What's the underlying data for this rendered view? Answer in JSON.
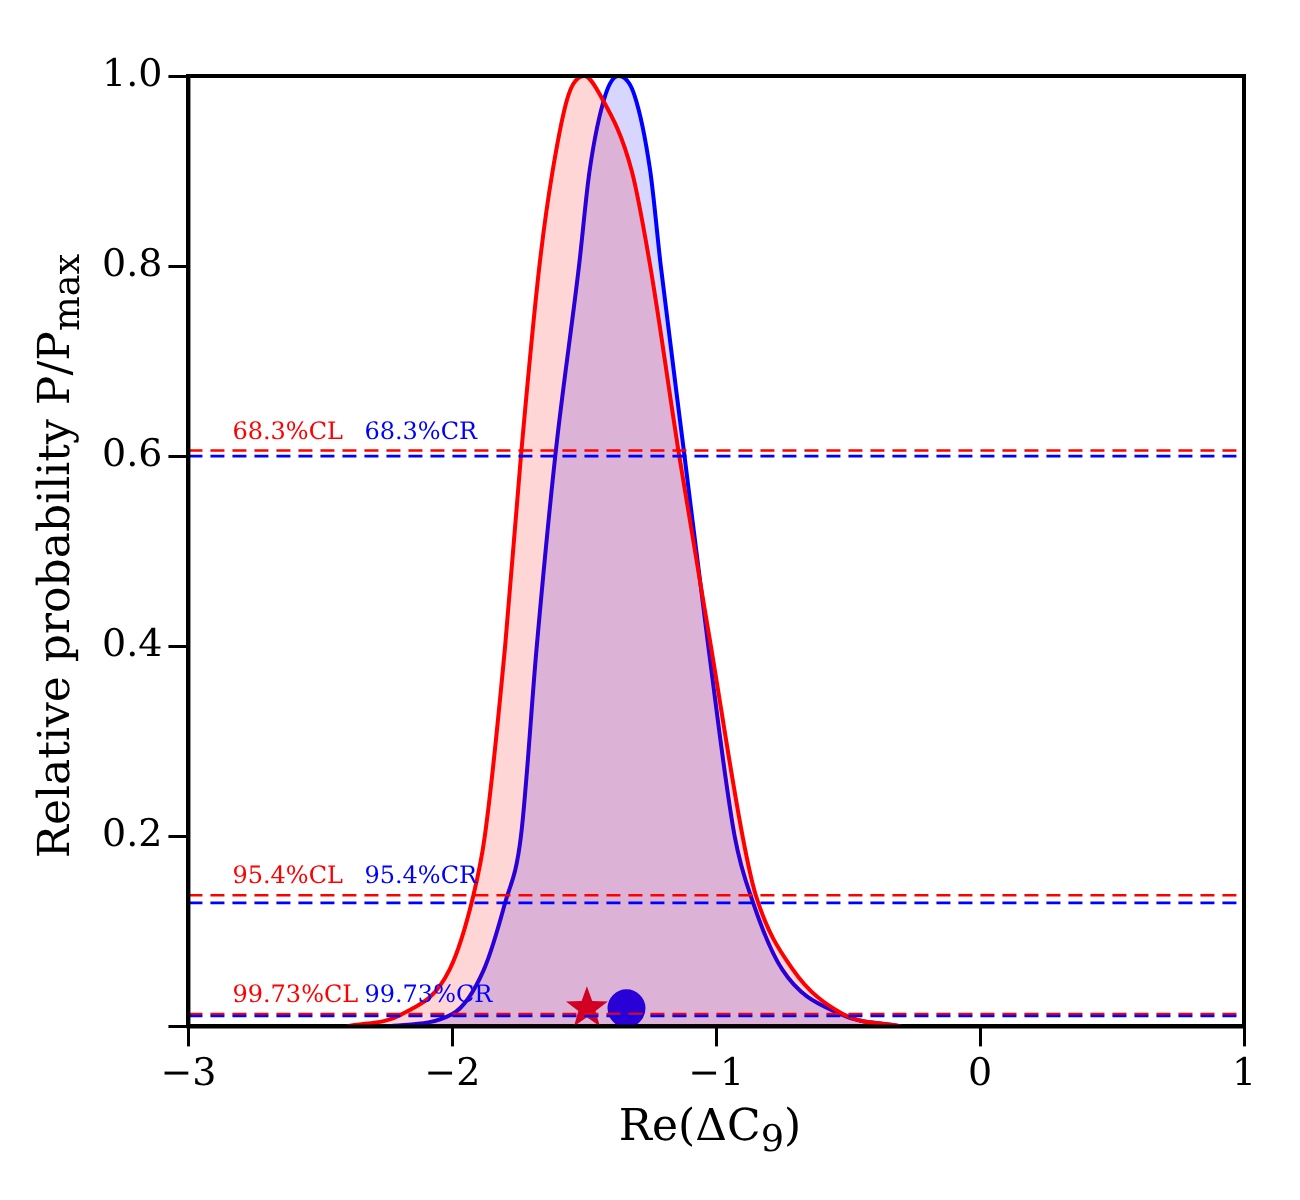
{
  "chart_data": {
    "type": "area",
    "xlabel": "Re(ΔC$_{9}$)",
    "ylabel": "Relative probability P/P$_{max}$",
    "xlim": [
      -3,
      1
    ],
    "xticks": [
      {
        "value": -3,
        "label": "−3"
      },
      {
        "value": -2,
        "label": "−2"
      },
      {
        "value": -1,
        "label": "−1"
      },
      0,
      1
    ],
    "ylim": [
      0,
      1
    ],
    "yticks": [
      {
        "value": 0,
        "label": null
      },
      0.2,
      0.4,
      0.6,
      0.8,
      {
        "value": 1,
        "label": "1.0"
      }
    ],
    "grid": false,
    "legend": false,
    "marker": "none",
    "series": [
      {
        "color": "#ff0000",
        "x": [
          -2.4,
          -2.19,
          -2.01,
          -1.92,
          -1.877,
          -1.8,
          -1.74,
          -1.67,
          -1.62,
          -1.56,
          -1.5,
          -1.44,
          -1.32,
          -1.25,
          -1.14,
          -1.02,
          -0.9,
          -0.85,
          -0.71,
          -0.52,
          -0.3
        ],
        "values": [
          0,
          0.013,
          0.06,
          0.138,
          0.2,
          0.4,
          0.6,
          0.8,
          0.9,
          0.98,
          1,
          0.98,
          0.9,
          0.8,
          0.6,
          0.4,
          0.2,
          0.138,
          0.06,
          0.013,
          0
        ]
      },
      {
        "color": "#0000ff",
        "x": [
          -2.25,
          -2.0,
          -1.88,
          -1.8,
          -1.74,
          -1.68,
          -1.61,
          -1.52,
          -1.48,
          -1.42,
          -1.37,
          -1.31,
          -1.25,
          -1.21,
          -1.12,
          -1.03,
          -0.93,
          -0.86,
          -0.75,
          -0.53,
          -0.3
        ],
        "values": [
          0,
          0.013,
          0.06,
          0.13,
          0.2,
          0.4,
          0.6,
          0.8,
          0.9,
          0.98,
          1,
          0.98,
          0.9,
          0.8,
          0.6,
          0.4,
          0.2,
          0.13,
          0.06,
          0.013,
          0
        ]
      },
      {
        "type": "scatter",
        "marker": "star",
        "color": "#f00000",
        "x": [
          -1.49
        ],
        "values": [
          0.019
        ]
      },
      {
        "type": "scatter",
        "marker": "circle",
        "color": "#0000ff",
        "x": [
          -1.34
        ],
        "values": [
          0.019
        ]
      }
    ],
    "ref_lines": [
      {
        "axis": "y",
        "value": 0.606,
        "label": "68.3%CL",
        "color": "#ff0000",
        "line_style": "dashed"
      },
      {
        "axis": "y",
        "value": 0.6,
        "label": "68.3%CR",
        "color": "#0000ff",
        "line_style": "dashed"
      },
      {
        "axis": "y",
        "value": 0.138,
        "label": "95.4%CL",
        "color": "#ff0000",
        "line_style": "dashed"
      },
      {
        "axis": "y",
        "value": 0.13,
        "label": "95.4%CR",
        "color": "#0000ff",
        "line_style": "dashed"
      },
      {
        "axis": "y",
        "value": 0.013,
        "label": "99.73%CL",
        "color": "#ff0000",
        "line_style": "dashed"
      },
      {
        "axis": "y",
        "value": 0.011,
        "label": "99.73%CR",
        "color": "#0000ff",
        "line_style": "dashed"
      }
    ]
  }
}
